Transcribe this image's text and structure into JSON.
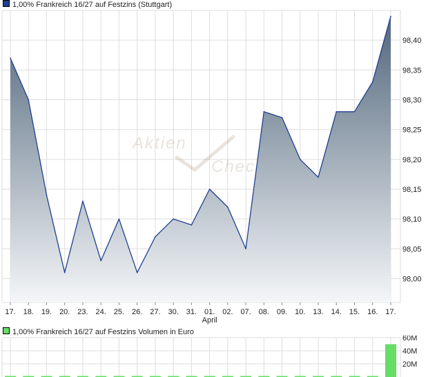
{
  "colors": {
    "price_line": "#1f3f8f",
    "area_top": "#52677c",
    "area_bottom": "#f4f6f8",
    "volume_bar": "#66dd66",
    "legend_price": "#1f3f8f",
    "legend_volume": "#66dd66",
    "grid": "#dddddd"
  },
  "watermark": {
    "word1": "Aktien",
    "word2": "Check"
  },
  "chart_data": [
    {
      "type": "area",
      "title": "1,00% Frankreich 16/27 auf Festzins (Stuttgart)",
      "categories": [
        "17.",
        "18.",
        "19.",
        "20.",
        "23.",
        "24.",
        "25.",
        "26.",
        "27.",
        "30.",
        "31.",
        "01.",
        "02.",
        "07.",
        "08.",
        "09.",
        "10.",
        "13.",
        "14.",
        "15.",
        "16.",
        "17."
      ],
      "month_label": {
        "index": 11,
        "text": "April"
      },
      "values": [
        98.37,
        98.3,
        98.14,
        98.01,
        98.13,
        98.03,
        98.1,
        98.01,
        98.07,
        98.1,
        98.09,
        98.15,
        98.12,
        98.05,
        98.28,
        98.27,
        98.2,
        98.17,
        98.28,
        98.28,
        98.33,
        98.44
      ],
      "y_ticks": [
        "98,00",
        "98,05",
        "98,10",
        "98,15",
        "98,20",
        "98,25",
        "98,30",
        "98,35",
        "98,40"
      ],
      "ylim": [
        97.96,
        98.45
      ],
      "grid": true
    },
    {
      "type": "bar",
      "title": "1,00% Frankreich 16/27 auf Festzins Volumen in Euro",
      "values": [
        0,
        0,
        0,
        0,
        0,
        0,
        0,
        0,
        0,
        0,
        0,
        0,
        0,
        0,
        0,
        0,
        0,
        0,
        0,
        0,
        0,
        50
      ],
      "y_ticks": [
        "20M",
        "40M",
        "60M"
      ],
      "ylim": [
        0,
        60
      ],
      "grid": true
    }
  ]
}
